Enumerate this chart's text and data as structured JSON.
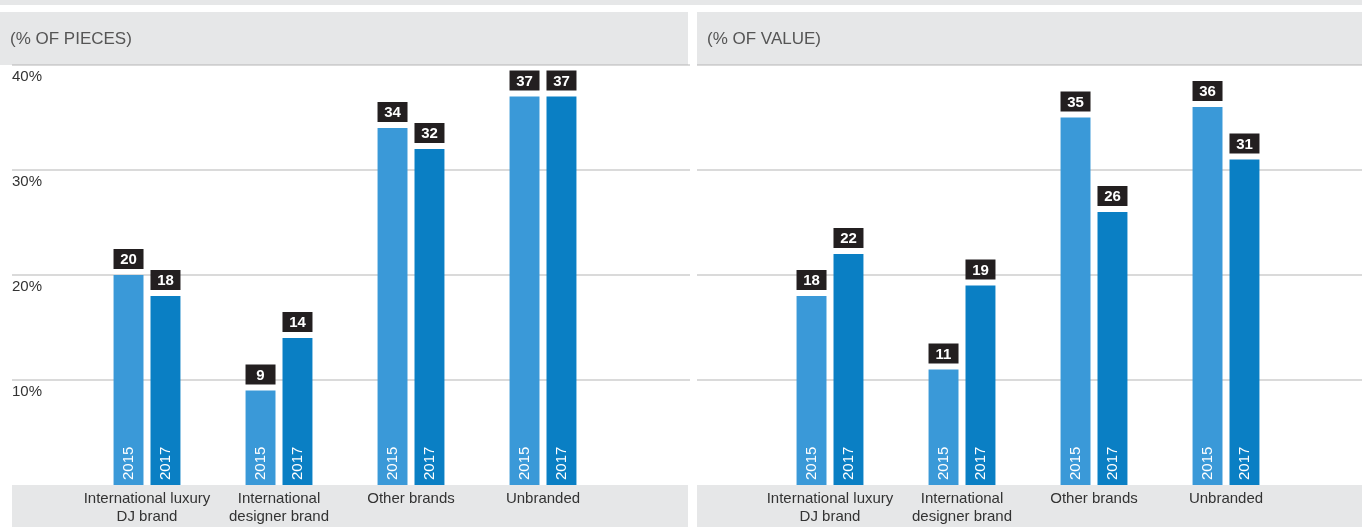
{
  "chart_data": [
    {
      "type": "bar",
      "title": "(% OF PIECES)",
      "categories": [
        "International luxury DJ brand",
        "International designer brand",
        "Other brands",
        "Unbranded"
      ],
      "series": [
        {
          "name": "2015",
          "color": "#3a99d8",
          "values": [
            20,
            9,
            34,
            37
          ]
        },
        {
          "name": "2017",
          "color": "#0a7fc4",
          "values": [
            18,
            14,
            32,
            37
          ]
        }
      ],
      "ylim": [
        0,
        40
      ],
      "yticks": [
        {
          "value": 10,
          "label": "10%"
        },
        {
          "value": 20,
          "label": "20%"
        },
        {
          "value": 30,
          "label": "30%"
        },
        {
          "value": 40,
          "label": "40%"
        }
      ],
      "grid": "y",
      "data_labels": true
    },
    {
      "type": "bar",
      "title": "(% OF VALUE)",
      "categories": [
        "International luxury DJ brand",
        "International designer brand",
        "Other brands",
        "Unbranded"
      ],
      "series": [
        {
          "name": "2015",
          "color": "#3a99d8",
          "values": [
            18,
            11,
            35,
            36
          ]
        },
        {
          "name": "2017",
          "color": "#0a7fc4",
          "values": [
            22,
            19,
            26,
            31
          ]
        }
      ],
      "ylim": [
        0,
        40
      ],
      "yticks": [
        10,
        20,
        30,
        40
      ],
      "grid": "y",
      "data_labels": true,
      "tick_labels": "x"
    }
  ]
}
